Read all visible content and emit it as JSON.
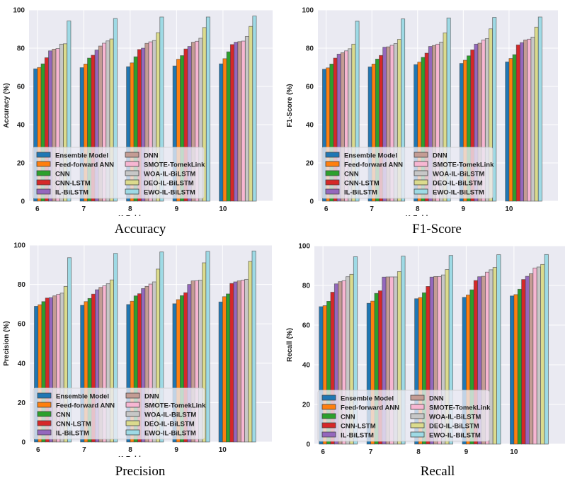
{
  "legend_entries": [
    {
      "name": "Ensemble Model",
      "color": "#1f77b4"
    },
    {
      "name": "Feed-forward ANN",
      "color": "#ff7f0e"
    },
    {
      "name": "CNN",
      "color": "#2ca02c"
    },
    {
      "name": "CNN-LSTM",
      "color": "#d62728"
    },
    {
      "name": "IL-BiLSTM",
      "color": "#9467bd"
    },
    {
      "name": "DNN",
      "color": "#c49c94"
    },
    {
      "name": "SMOTE-TomekLink",
      "color": "#f7b6d2"
    },
    {
      "name": "WOA-IL-BiLSTM",
      "color": "#c7c7c7"
    },
    {
      "name": "DEO-IL-BiLSTM",
      "color": "#dbdb8d"
    },
    {
      "name": "EWO-IL-BiLSTM",
      "color": "#9edae5"
    }
  ],
  "chart_data": [
    {
      "type": "bar",
      "caption": "Accuracy",
      "title": "",
      "xlabel": "K-Fold",
      "ylabel": "Accuracy (%)",
      "ylim": [
        0,
        100
      ],
      "yticks": [
        "0",
        "20",
        "40",
        "60",
        "80",
        "100"
      ],
      "categories": [
        "6",
        "7",
        "8",
        "9",
        "10"
      ],
      "grid": true,
      "legend_position": "lower-left",
      "series": [
        {
          "name": "Ensemble Model",
          "values": [
            69.2,
            69.8,
            70.3,
            70.7,
            71.8
          ]
        },
        {
          "name": "Feed-forward ANN",
          "values": [
            69.9,
            71.7,
            72.3,
            74.2,
            74.5
          ]
        },
        {
          "name": "CNN",
          "values": [
            71.8,
            74.8,
            75.5,
            76.1,
            78.1
          ]
        },
        {
          "name": "CNN-LSTM",
          "values": [
            75.0,
            76.3,
            79.3,
            79.6,
            81.9
          ]
        },
        {
          "name": "IL-BiLSTM",
          "values": [
            78.6,
            79.0,
            80.0,
            80.9,
            83.1
          ]
        },
        {
          "name": "DNN",
          "values": [
            79.5,
            81.1,
            82.5,
            83.1,
            83.4
          ]
        },
        {
          "name": "SMOTE-TomekLink",
          "values": [
            79.8,
            82.6,
            83.3,
            83.6,
            83.7
          ]
        },
        {
          "name": "WOA-IL-BiLSTM",
          "values": [
            82.1,
            83.8,
            84.0,
            85.2,
            86.1
          ]
        },
        {
          "name": "DEO-IL-BiLSTM",
          "values": [
            82.3,
            84.8,
            88.1,
            90.8,
            91.4
          ]
        },
        {
          "name": "EWO-IL-BiLSTM",
          "values": [
            94.2,
            95.5,
            96.3,
            96.3,
            96.8
          ]
        }
      ]
    },
    {
      "type": "bar",
      "caption": "F1-Score",
      "title": "",
      "xlabel": "K-Fold",
      "ylabel": "F1-Score (%)",
      "ylim": [
        0,
        100
      ],
      "yticks": [
        "0",
        "20",
        "40",
        "60",
        "80",
        "100"
      ],
      "categories": [
        "6",
        "7",
        "8",
        "9",
        "10"
      ],
      "grid": true,
      "legend_position": "lower-left",
      "series": [
        {
          "name": "Ensemble Model",
          "values": [
            69.0,
            70.2,
            71.4,
            72.0,
            72.8
          ]
        },
        {
          "name": "Feed-forward ANN",
          "values": [
            69.7,
            71.7,
            72.7,
            73.7,
            74.6
          ]
        },
        {
          "name": "CNN",
          "values": [
            71.7,
            74.3,
            75.2,
            76.0,
            76.6
          ]
        },
        {
          "name": "CNN-LSTM",
          "values": [
            74.8,
            76.2,
            77.4,
            79.1,
            81.7
          ]
        },
        {
          "name": "IL-BiLSTM",
          "values": [
            76.9,
            80.5,
            80.9,
            82.1,
            82.9
          ]
        },
        {
          "name": "DNN",
          "values": [
            77.6,
            80.7,
            81.4,
            82.6,
            84.3
          ]
        },
        {
          "name": "SMOTE-TomekLink",
          "values": [
            78.6,
            81.5,
            82.1,
            84.3,
            84.7
          ]
        },
        {
          "name": "WOA-IL-BiLSTM",
          "values": [
            79.7,
            82.4,
            83.2,
            85.0,
            85.8
          ]
        },
        {
          "name": "DEO-IL-BiLSTM",
          "values": [
            82.1,
            84.6,
            88.0,
            90.1,
            91.0
          ]
        },
        {
          "name": "EWO-IL-BiLSTM",
          "values": [
            94.1,
            95.3,
            95.8,
            96.1,
            96.3
          ]
        }
      ]
    },
    {
      "type": "bar",
      "caption": "Precision",
      "title": "",
      "xlabel": "K-Fold",
      "ylabel": "Precision (%)",
      "ylim": [
        0,
        100
      ],
      "yticks": [
        "0",
        "20",
        "40",
        "60",
        "80",
        "100"
      ],
      "categories": [
        "6",
        "7",
        "8",
        "9",
        "10"
      ],
      "grid": true,
      "legend_position": "lower-left",
      "series": [
        {
          "name": "Ensemble Model",
          "values": [
            68.9,
            69.4,
            69.8,
            70.2,
            71.1
          ]
        },
        {
          "name": "Feed-forward ANN",
          "values": [
            69.7,
            71.3,
            71.5,
            72.3,
            73.8
          ]
        },
        {
          "name": "CNN",
          "values": [
            71.3,
            72.9,
            74.2,
            74.3,
            75.2
          ]
        },
        {
          "name": "CNN-LSTM",
          "values": [
            73.1,
            75.1,
            75.3,
            75.8,
            80.5
          ]
        },
        {
          "name": "IL-BiLSTM",
          "values": [
            73.3,
            77.3,
            77.9,
            80.0,
            81.3
          ]
        },
        {
          "name": "DNN",
          "values": [
            74.2,
            78.5,
            79.0,
            81.8,
            81.8
          ]
        },
        {
          "name": "SMOTE-TomekLink",
          "values": [
            75.0,
            79.3,
            80.2,
            81.9,
            82.2
          ]
        },
        {
          "name": "WOA-IL-BiLSTM",
          "values": [
            75.6,
            80.4,
            81.3,
            82.2,
            82.6
          ]
        },
        {
          "name": "DEO-IL-BiLSTM",
          "values": [
            79.0,
            82.3,
            87.8,
            91.0,
            91.7
          ]
        },
        {
          "name": "EWO-IL-BiLSTM",
          "values": [
            93.6,
            95.8,
            96.5,
            96.8,
            97.0
          ]
        }
      ]
    },
    {
      "type": "bar",
      "caption": "Recall",
      "title": "",
      "xlabel": "K-Fold",
      "ylabel": "Recall (%)",
      "ylim": [
        0,
        100
      ],
      "yticks": [
        "0",
        "20",
        "40",
        "60",
        "80",
        "100"
      ],
      "categories": [
        "6",
        "7",
        "8",
        "9",
        "10"
      ],
      "grid": true,
      "legend_position": "lower-left",
      "series": [
        {
          "name": "Ensemble Model",
          "values": [
            69.3,
            71.0,
            73.3,
            74.0,
            74.7
          ]
        },
        {
          "name": "Feed-forward ANN",
          "values": [
            69.8,
            72.1,
            73.9,
            75.2,
            75.4
          ]
        },
        {
          "name": "CNN",
          "values": [
            72.0,
            76.0,
            76.3,
            77.8,
            78.1
          ]
        },
        {
          "name": "CNN-LSTM",
          "values": [
            76.6,
            77.3,
            79.5,
            82.5,
            83.0
          ]
        },
        {
          "name": "IL-BiLSTM",
          "values": [
            80.8,
            84.2,
            84.2,
            84.4,
            84.6
          ]
        },
        {
          "name": "DNN",
          "values": [
            81.9,
            84.3,
            84.5,
            84.6,
            85.9
          ]
        },
        {
          "name": "SMOTE-TomekLink",
          "values": [
            82.4,
            84.3,
            84.5,
            86.7,
            88.8
          ]
        },
        {
          "name": "WOA-IL-BiLSTM",
          "values": [
            84.4,
            84.3,
            85.3,
            87.9,
            89.3
          ]
        },
        {
          "name": "DEO-IL-BiLSTM",
          "values": [
            85.6,
            87.0,
            88.0,
            89.1,
            90.6
          ]
        },
        {
          "name": "EWO-IL-BiLSTM",
          "values": [
            94.5,
            94.8,
            95.1,
            95.5,
            95.6
          ]
        }
      ]
    }
  ]
}
